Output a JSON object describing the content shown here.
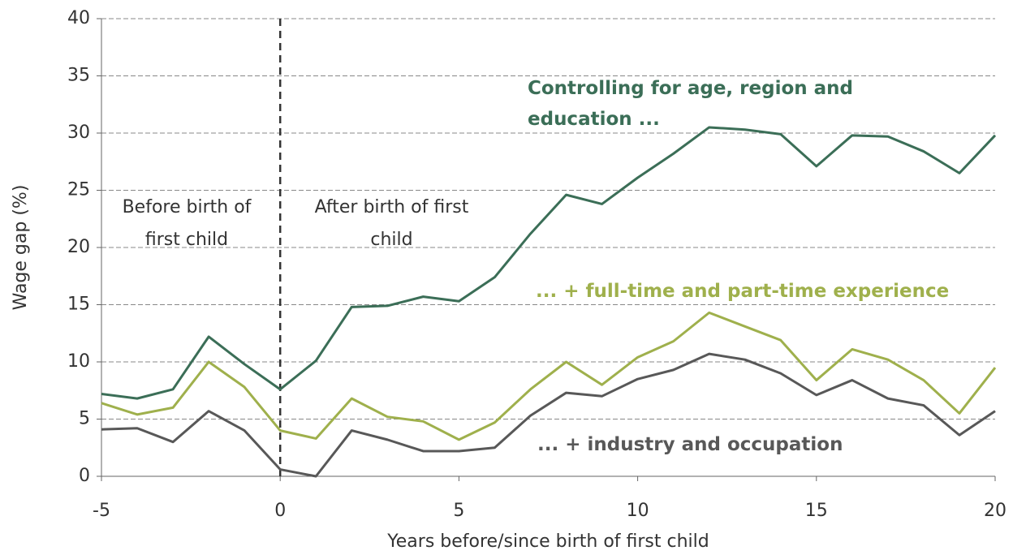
{
  "chart_data": {
    "type": "line",
    "x_label": "Years before/since birth of first child",
    "y_label": "Wage gap (%)",
    "x": [
      -5,
      -4,
      -3,
      -2,
      -1,
      0,
      1,
      2,
      3,
      4,
      5,
      6,
      7,
      8,
      9,
      10,
      11,
      12,
      13,
      14,
      15,
      16,
      17,
      18,
      19,
      20
    ],
    "series": [
      {
        "name": "Controlling for age, region and education ...",
        "color": "#3b6e57",
        "values": [
          7.2,
          6.8,
          7.6,
          12.2,
          9.8,
          7.6,
          10.1,
          14.8,
          14.9,
          15.7,
          15.3,
          17.4,
          21.2,
          24.6,
          23.8,
          26.1,
          28.2,
          30.5,
          30.3,
          29.9,
          27.1,
          29.8,
          29.7,
          28.4,
          26.5,
          29.8
        ]
      },
      {
        "name": "... + full-time and part-time experience",
        "color": "#9fb04c",
        "values": [
          6.4,
          5.4,
          6.0,
          10.0,
          7.8,
          4.0,
          3.3,
          6.8,
          5.2,
          4.8,
          3.2,
          4.7,
          7.6,
          10.0,
          8.0,
          10.4,
          11.8,
          14.3,
          13.1,
          11.9,
          8.4,
          11.1,
          10.2,
          8.4,
          5.5,
          9.5
        ]
      },
      {
        "name": "... + industry and occupation",
        "color": "#585858",
        "values": [
          4.1,
          4.2,
          3.0,
          5.7,
          4.0,
          0.6,
          0.0,
          4.0,
          3.2,
          2.2,
          2.2,
          2.5,
          5.3,
          7.3,
          7.0,
          8.5,
          9.3,
          10.7,
          10.2,
          9.0,
          7.1,
          8.4,
          6.8,
          6.2,
          3.6,
          5.7
        ]
      }
    ],
    "annotations": [
      "Before birth of first child",
      "After birth of first child"
    ],
    "reference_line_x": 0,
    "xlim": [
      -5,
      20
    ],
    "xticks": [
      -5,
      0,
      5,
      10,
      15,
      20
    ],
    "ylim": [
      0,
      40
    ],
    "yticks": [
      0,
      5,
      10,
      15,
      20,
      25,
      30,
      35,
      40
    ],
    "grid": true
  }
}
